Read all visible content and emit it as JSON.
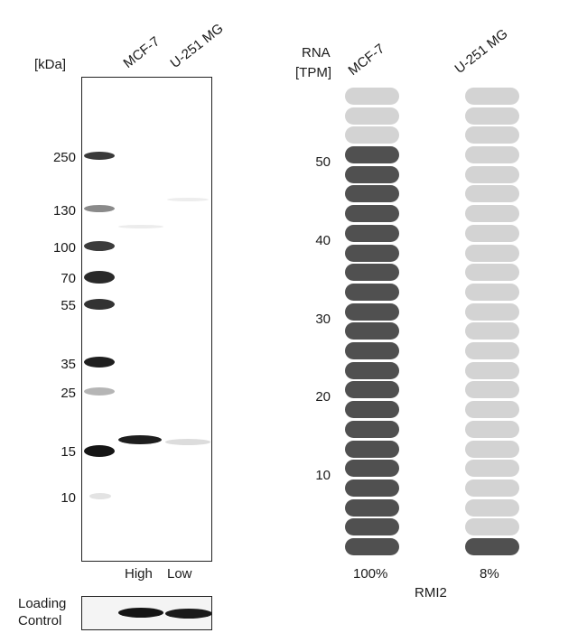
{
  "western_blot": {
    "kda_label": "[kDa]",
    "lanes": [
      "MCF-7",
      "U-251 MG"
    ],
    "markers": [
      {
        "label": "250",
        "kda": 250
      },
      {
        "label": "130",
        "kda": 130
      },
      {
        "label": "100",
        "kda": 100
      },
      {
        "label": "70",
        "kda": 70
      },
      {
        "label": "55",
        "kda": 55
      },
      {
        "label": "35",
        "kda": 35
      },
      {
        "label": "25",
        "kda": 25
      },
      {
        "label": "15",
        "kda": 15
      },
      {
        "label": "10",
        "kda": 10
      }
    ],
    "expression_labels": [
      "High",
      "Low"
    ],
    "loading_control_label": [
      "Loading",
      "Control"
    ]
  },
  "rna": {
    "axis_title": [
      "RNA",
      "[TPM]"
    ],
    "gene": "RMI2",
    "chart_data": {
      "type": "bar",
      "categories": [
        "MCF-7",
        "U-251 MG"
      ],
      "filled_pills": [
        21,
        1
      ],
      "total_pills": 24,
      "percent_labels": [
        "100%",
        "8%"
      ],
      "yticks": [
        10,
        20,
        30,
        40,
        50
      ],
      "ylim": [
        0,
        55
      ]
    },
    "colors": {
      "filled": "#505050",
      "empty": "#d3d3d3"
    }
  }
}
